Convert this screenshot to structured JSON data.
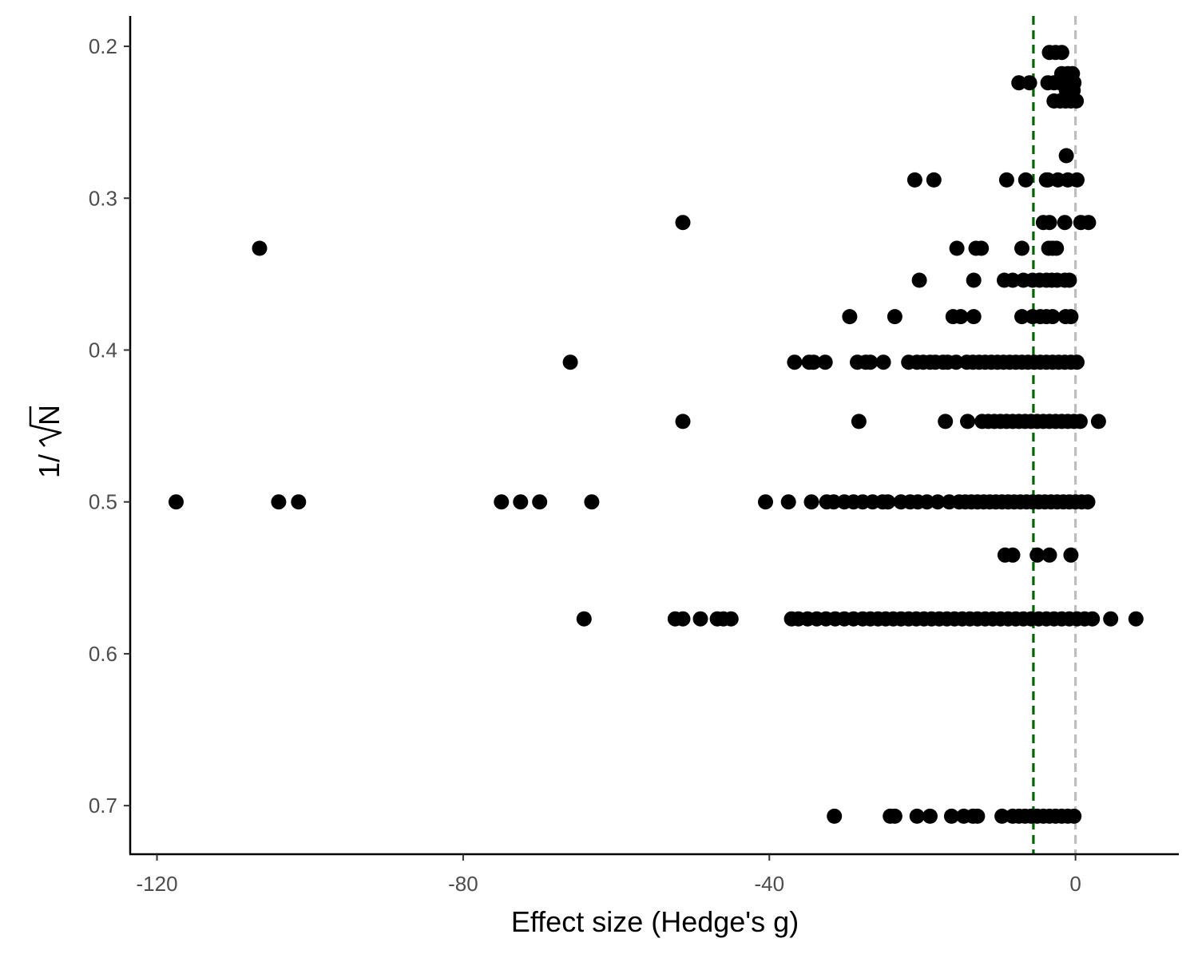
{
  "chart_data": {
    "type": "scatter",
    "xlabel": "Effect size (Hedge's g)",
    "ylabel_prefix": "1/",
    "ylabel_radicand": "N",
    "xlim": [
      -123.5,
      13.5
    ],
    "ylim": [
      0.18,
      0.732
    ],
    "y_reversed": true,
    "grid": false,
    "x_ticks": [
      -120,
      -80,
      -40,
      0
    ],
    "y_ticks": [
      0.2,
      0.3,
      0.4,
      0.5,
      0.6,
      0.7
    ],
    "reference_lines": [
      {
        "x": -5.5,
        "color": "#006400",
        "style": "dashed"
      },
      {
        "x": 0,
        "color": "#bebebe",
        "style": "dashed"
      }
    ],
    "points": [
      [
        -3.4,
        0.204
      ],
      [
        -2.6,
        0.204
      ],
      [
        -1.8,
        0.204
      ],
      [
        -7.4,
        0.224
      ],
      [
        -6,
        0.224
      ],
      [
        -3.6,
        0.224
      ],
      [
        -2.8,
        0.224
      ],
      [
        -2,
        0.224
      ],
      [
        -1.3,
        0.224
      ],
      [
        -0.6,
        0.224
      ],
      [
        -0.2,
        0.224
      ],
      [
        -1.8,
        0.218
      ],
      [
        -1,
        0.218
      ],
      [
        -0.4,
        0.218
      ],
      [
        -1.2,
        0.229
      ],
      [
        -0.3,
        0.229
      ],
      [
        -2.8,
        0.236
      ],
      [
        -2,
        0.236
      ],
      [
        -1.3,
        0.236
      ],
      [
        -0.6,
        0.236
      ],
      [
        0.1,
        0.236
      ],
      [
        -1.2,
        0.272
      ],
      [
        -21,
        0.288
      ],
      [
        -18.5,
        0.288
      ],
      [
        -9,
        0.288
      ],
      [
        -6.5,
        0.288
      ],
      [
        -3.6,
        0.288
      ],
      [
        -1,
        0.288
      ],
      [
        -3.8,
        0.288
      ],
      [
        -2.3,
        0.288
      ],
      [
        0.2,
        0.288
      ],
      [
        -51.3,
        0.316
      ],
      [
        -4.2,
        0.316
      ],
      [
        -3.4,
        0.316
      ],
      [
        -1.4,
        0.316
      ],
      [
        0.7,
        0.316
      ],
      [
        1.7,
        0.316
      ],
      [
        -106.6,
        0.333
      ],
      [
        -15.5,
        0.333
      ],
      [
        -13,
        0.333
      ],
      [
        -12.3,
        0.333
      ],
      [
        -7,
        0.333
      ],
      [
        -3.5,
        0.333
      ],
      [
        -3,
        0.333
      ],
      [
        -2.5,
        0.333
      ],
      [
        -20.4,
        0.354
      ],
      [
        -13.3,
        0.354
      ],
      [
        -9.3,
        0.354
      ],
      [
        -8.2,
        0.354
      ],
      [
        -6.8,
        0.354
      ],
      [
        -5.6,
        0.354
      ],
      [
        -4.7,
        0.354
      ],
      [
        -3.8,
        0.354
      ],
      [
        -3.1,
        0.354
      ],
      [
        -2.4,
        0.354
      ],
      [
        -1.4,
        0.354
      ],
      [
        -0.8,
        0.354
      ],
      [
        -29.5,
        0.378
      ],
      [
        -23.6,
        0.378
      ],
      [
        -16,
        0.378
      ],
      [
        -15,
        0.378
      ],
      [
        -13.3,
        0.378
      ],
      [
        -7,
        0.378
      ],
      [
        -5.6,
        0.378
      ],
      [
        -4.6,
        0.378
      ],
      [
        -3.8,
        0.378
      ],
      [
        -3,
        0.378
      ],
      [
        -1.3,
        0.378
      ],
      [
        -0.6,
        0.378
      ],
      [
        -66,
        0.408
      ],
      [
        -36.7,
        0.408
      ],
      [
        -34.8,
        0.408
      ],
      [
        -34.2,
        0.408
      ],
      [
        -32.7,
        0.408
      ],
      [
        -28.5,
        0.408
      ],
      [
        -27.4,
        0.408
      ],
      [
        -26.8,
        0.408
      ],
      [
        -25.1,
        0.408
      ],
      [
        -21.8,
        0.408
      ],
      [
        -20.7,
        0.408
      ],
      [
        -19.9,
        0.408
      ],
      [
        -19,
        0.408
      ],
      [
        -18.3,
        0.408
      ],
      [
        -17.3,
        0.408
      ],
      [
        -16.7,
        0.408
      ],
      [
        -15.6,
        0.408
      ],
      [
        -14.2,
        0.408
      ],
      [
        -13.4,
        0.408
      ],
      [
        -12.6,
        0.408
      ],
      [
        -11.8,
        0.408
      ],
      [
        -11,
        0.408
      ],
      [
        -10.2,
        0.408
      ],
      [
        -9.4,
        0.408
      ],
      [
        -8.6,
        0.408
      ],
      [
        -7.8,
        0.408
      ],
      [
        -7,
        0.408
      ],
      [
        -6.2,
        0.408
      ],
      [
        -5.4,
        0.408
      ],
      [
        -4.6,
        0.408
      ],
      [
        -3.8,
        0.408
      ],
      [
        -3,
        0.408
      ],
      [
        -2.2,
        0.408
      ],
      [
        -1.4,
        0.408
      ],
      [
        -0.6,
        0.408
      ],
      [
        0.2,
        0.408
      ],
      [
        -51.3,
        0.447
      ],
      [
        -28.3,
        0.447
      ],
      [
        -17,
        0.447
      ],
      [
        -14.1,
        0.447
      ],
      [
        -12.2,
        0.447
      ],
      [
        -11.4,
        0.447
      ],
      [
        -10.6,
        0.447
      ],
      [
        -9.8,
        0.447
      ],
      [
        -9,
        0.447
      ],
      [
        -8.2,
        0.447
      ],
      [
        -7.4,
        0.447
      ],
      [
        -6.6,
        0.447
      ],
      [
        -5.8,
        0.447
      ],
      [
        -5,
        0.447
      ],
      [
        -4.2,
        0.447
      ],
      [
        -3.4,
        0.447
      ],
      [
        -2.6,
        0.447
      ],
      [
        -1.8,
        0.447
      ],
      [
        -1,
        0.447
      ],
      [
        -0.2,
        0.447
      ],
      [
        0.6,
        0.447
      ],
      [
        3,
        0.447
      ],
      [
        -117.5,
        0.5
      ],
      [
        -104.1,
        0.5
      ],
      [
        -101.5,
        0.5
      ],
      [
        -75,
        0.5
      ],
      [
        -72.5,
        0.5
      ],
      [
        -70,
        0.5
      ],
      [
        -63.2,
        0.5
      ],
      [
        -40.5,
        0.5
      ],
      [
        -37.5,
        0.5
      ],
      [
        -34.5,
        0.5
      ],
      [
        -32.5,
        0.5
      ],
      [
        -31.6,
        0.5
      ],
      [
        -30.2,
        0.5
      ],
      [
        -29,
        0.5
      ],
      [
        -27.8,
        0.5
      ],
      [
        -26.5,
        0.5
      ],
      [
        -25.2,
        0.5
      ],
      [
        -24.5,
        0.5
      ],
      [
        -22.8,
        0.5
      ],
      [
        -21.6,
        0.5
      ],
      [
        -20.6,
        0.5
      ],
      [
        -19.4,
        0.5
      ],
      [
        -18,
        0.5
      ],
      [
        -16.5,
        0.5
      ],
      [
        -15.2,
        0.5
      ],
      [
        -14.4,
        0.5
      ],
      [
        -13.6,
        0.5
      ],
      [
        -12.8,
        0.5
      ],
      [
        -12,
        0.5
      ],
      [
        -11.2,
        0.5
      ],
      [
        -10.4,
        0.5
      ],
      [
        -9.6,
        0.5
      ],
      [
        -8.8,
        0.5
      ],
      [
        -8,
        0.5
      ],
      [
        -7.2,
        0.5
      ],
      [
        -6.4,
        0.5
      ],
      [
        -5.6,
        0.5
      ],
      [
        -4.8,
        0.5
      ],
      [
        -4,
        0.5
      ],
      [
        -3.2,
        0.5
      ],
      [
        -2.4,
        0.5
      ],
      [
        -1.6,
        0.5
      ],
      [
        -0.8,
        0.5
      ],
      [
        0,
        0.5
      ],
      [
        0.8,
        0.5
      ],
      [
        1.6,
        0.5
      ],
      [
        -9.2,
        0.535
      ],
      [
        -8.2,
        0.535
      ],
      [
        -5,
        0.535
      ],
      [
        -3.4,
        0.535
      ],
      [
        -0.6,
        0.535
      ],
      [
        -64.2,
        0.577
      ],
      [
        -52.3,
        0.577
      ],
      [
        -51.3,
        0.577
      ],
      [
        -49,
        0.577
      ],
      [
        -46.8,
        0.577
      ],
      [
        -46,
        0.577
      ],
      [
        -45,
        0.577
      ],
      [
        -37.1,
        0.577
      ],
      [
        -36.2,
        0.577
      ],
      [
        -35,
        0.577
      ],
      [
        -33.8,
        0.577
      ],
      [
        -32.6,
        0.577
      ],
      [
        -31.4,
        0.577
      ],
      [
        -30.2,
        0.577
      ],
      [
        -29,
        0.577
      ],
      [
        -27.8,
        0.577
      ],
      [
        -26.8,
        0.577
      ],
      [
        -25.8,
        0.577
      ],
      [
        -24.8,
        0.577
      ],
      [
        -23.8,
        0.577
      ],
      [
        -22.8,
        0.577
      ],
      [
        -21.8,
        0.577
      ],
      [
        -20.8,
        0.577
      ],
      [
        -19.8,
        0.577
      ],
      [
        -18.8,
        0.577
      ],
      [
        -17.8,
        0.577
      ],
      [
        -16.8,
        0.577
      ],
      [
        -15.8,
        0.577
      ],
      [
        -14.8,
        0.577
      ],
      [
        -13.8,
        0.577
      ],
      [
        -12.8,
        0.577
      ],
      [
        -11.8,
        0.577
      ],
      [
        -10.8,
        0.577
      ],
      [
        -9.8,
        0.577
      ],
      [
        -8.8,
        0.577
      ],
      [
        -7.8,
        0.577
      ],
      [
        -6.8,
        0.577
      ],
      [
        -5.8,
        0.577
      ],
      [
        -4.8,
        0.577
      ],
      [
        -3.8,
        0.577
      ],
      [
        -2.8,
        0.577
      ],
      [
        -1.8,
        0.577
      ],
      [
        -0.8,
        0.577
      ],
      [
        0.2,
        0.577
      ],
      [
        1.2,
        0.577
      ],
      [
        2.2,
        0.577
      ],
      [
        4.6,
        0.577
      ],
      [
        7.9,
        0.577
      ],
      [
        -31.5,
        0.707
      ],
      [
        -24.2,
        0.707
      ],
      [
        -23.6,
        0.707
      ],
      [
        -20.7,
        0.707
      ],
      [
        -19,
        0.707
      ],
      [
        -16.2,
        0.707
      ],
      [
        -14.6,
        0.707
      ],
      [
        -13.4,
        0.707
      ],
      [
        -12.8,
        0.707
      ],
      [
        -9.6,
        0.707
      ],
      [
        -8.2,
        0.707
      ],
      [
        -7.4,
        0.707
      ],
      [
        -6.6,
        0.707
      ],
      [
        -5.8,
        0.707
      ],
      [
        -5,
        0.707
      ],
      [
        -4.2,
        0.707
      ],
      [
        -3.4,
        0.707
      ],
      [
        -2.6,
        0.707
      ],
      [
        -1.8,
        0.707
      ],
      [
        -1,
        0.707
      ],
      [
        -0.2,
        0.707
      ]
    ]
  }
}
